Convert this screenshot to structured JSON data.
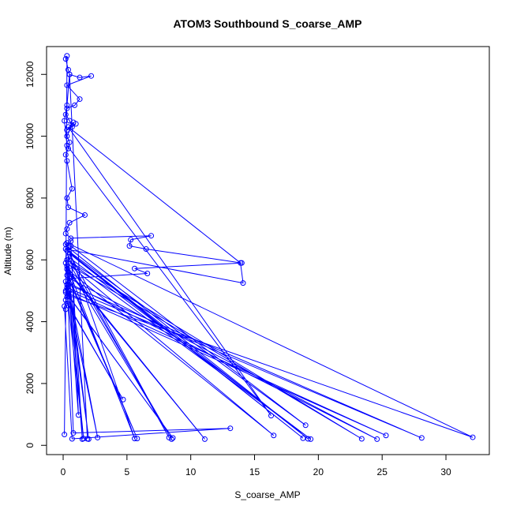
{
  "chart_data": {
    "type": "line",
    "title": "ATOM3 Southbound S_coarse_AMP",
    "xlabel": "S_coarse_AMP",
    "ylabel": "Altitude (m)",
    "xlim": [
      -1.3,
      33.4
    ],
    "ylim": [
      -300,
      12900
    ],
    "xticks": [
      0,
      5,
      10,
      15,
      20,
      25,
      30
    ],
    "yticks": [
      0,
      2000,
      4000,
      6000,
      8000,
      10000,
      12000
    ],
    "grid": false,
    "legend": "none",
    "series": [
      {
        "color": "#0000ff",
        "marker": "open-circle",
        "x": [
          0.1,
          0.2,
          0.3,
          0.2,
          0.4,
          0.5,
          1.3,
          2.2,
          0.3,
          1.3,
          0.9,
          0.3,
          0.2,
          0.5,
          0.7,
          1.0,
          0.3,
          0.8,
          0.3,
          0.5,
          0.4,
          0.2,
          0.3,
          0.7,
          0.3,
          0.4,
          1.7,
          0.5,
          0.3,
          0.2,
          0.6,
          6.9,
          5.3,
          5.2,
          6.5,
          14.0,
          5.6,
          6.6,
          0.5,
          0.3,
          0.2,
          0.4,
          0.3,
          0.2,
          4.7,
          0.3,
          0.1,
          0.7,
          13.1,
          0.8,
          0.2,
          0.6,
          1.2,
          0.3,
          5.6,
          0.4,
          19.2,
          0.3,
          18.8,
          0.5,
          8.3,
          0.4,
          19.4,
          0.3,
          23.4,
          0.2,
          8.5,
          0.6,
          16.5,
          0.3,
          11.1,
          0.4,
          2.0,
          0.3,
          5.8,
          0.5,
          24.6,
          0.2,
          1.6,
          0.4,
          28.1,
          0.3,
          2.7,
          0.5,
          25.3,
          0.2,
          8.6,
          0.4,
          32.1,
          0.3,
          1.5,
          0.6,
          19.0,
          0.2,
          14.1,
          13.9,
          0.4,
          16.3,
          0.3,
          0.1,
          0.3,
          0.5,
          1.9
        ],
        "y": [
          350,
          4400,
          12600,
          12500,
          12150,
          12000,
          11900,
          11950,
          11650,
          11200,
          11000,
          10900,
          10700,
          10500,
          10300,
          10400,
          10200,
          10450,
          10000,
          9800,
          9600,
          9400,
          9200,
          8300,
          8000,
          7700,
          7450,
          7200,
          7000,
          6850,
          6700,
          6780,
          6650,
          6450,
          6350,
          5900,
          5720,
          5560,
          5400,
          5200,
          5000,
          4900,
          4800,
          4700,
          1480,
          4600,
          4500,
          210,
          550,
          400,
          6500,
          6600,
          980,
          5800,
          220,
          6400,
          210,
          6300,
          230,
          6200,
          250,
          6100,
          200,
          6000,
          210,
          5900,
          200,
          5800,
          320,
          5700,
          200,
          5600,
          200,
          5500,
          220,
          5400,
          200,
          5300,
          220,
          5200,
          240,
          5100,
          250,
          5000,
          320,
          4950,
          240,
          4850,
          260,
          6550,
          200,
          6450,
          650,
          6350,
          5250,
          5900,
          10300,
          960,
          9700,
          10500,
          11000,
          12000,
          210
        ]
      }
    ]
  }
}
